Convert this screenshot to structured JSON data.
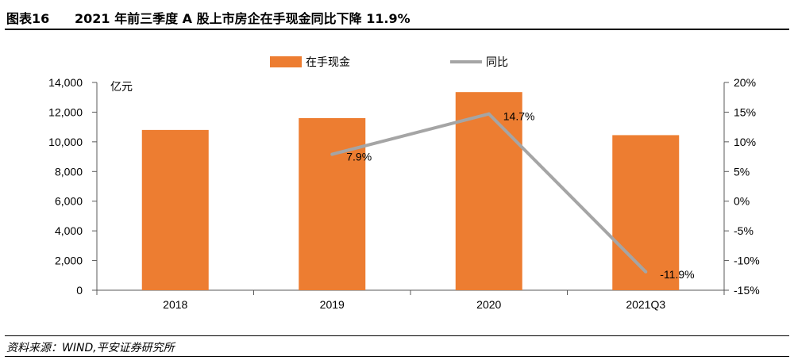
{
  "figure": {
    "label": "图表16",
    "title": "2021 年前三季度 A 股上市房企在手现金同比下降 11.9%",
    "source": "资料来源：WIND,平安证券研究所"
  },
  "chart_data": {
    "type": "bar",
    "categories": [
      "2018",
      "2019",
      "2020",
      "2021Q3"
    ],
    "y_unit_label": "亿元",
    "ylim": [
      0,
      14000
    ],
    "y_ticks": [
      0,
      2000,
      4000,
      6000,
      8000,
      10000,
      12000,
      14000
    ],
    "y_tick_labels": [
      "0",
      "2,000",
      "4,000",
      "6,000",
      "8,000",
      "10,000",
      "12,000",
      "14,000"
    ],
    "y2lim": [
      -15,
      20
    ],
    "y2_ticks": [
      -15,
      -10,
      -5,
      0,
      5,
      10,
      15,
      20
    ],
    "y2_tick_labels": [
      "-15%",
      "-10%",
      "-5%",
      "0%",
      "5%",
      "10%",
      "15%",
      "20%"
    ],
    "series": [
      {
        "name": "在手现金",
        "type": "bar",
        "axis": "left",
        "values": [
          10800,
          11600,
          13350,
          10450
        ]
      },
      {
        "name": "同比",
        "type": "line",
        "axis": "right",
        "values": [
          null,
          7.9,
          14.7,
          -11.9
        ],
        "labels": [
          "",
          "7.9%",
          "14.7%",
          "-11.9%"
        ]
      }
    ],
    "legend_position": "top-center",
    "grid": false,
    "colors": {
      "bar": "#ED7D31",
      "line": "#A5A5A5",
      "axis": "#595959"
    }
  }
}
